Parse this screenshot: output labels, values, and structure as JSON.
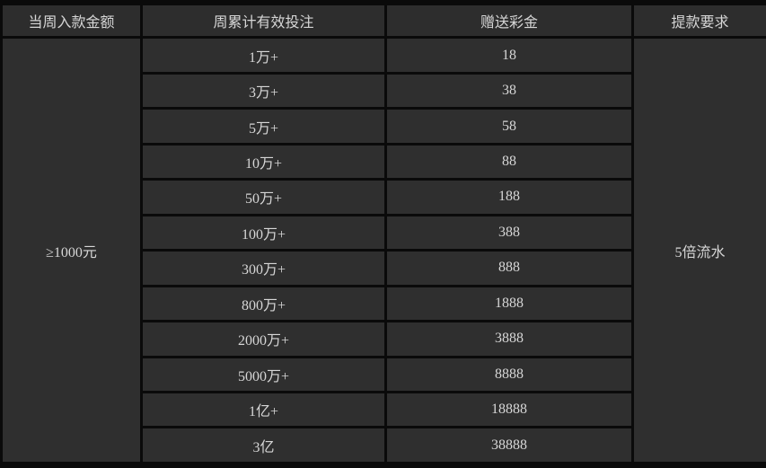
{
  "table": {
    "headers": {
      "deposit": "当周入款金额",
      "bet": "周累计有效投注",
      "bonus": "赠送彩金",
      "withdraw": "提款要求"
    },
    "deposit_requirement": "≥1000元",
    "withdrawal_requirement": "5倍流水",
    "rows": [
      {
        "bet": "1万+",
        "bonus": "18"
      },
      {
        "bet": "3万+",
        "bonus": "38"
      },
      {
        "bet": "5万+",
        "bonus": "58"
      },
      {
        "bet": "10万+",
        "bonus": "88"
      },
      {
        "bet": "50万+",
        "bonus": "188"
      },
      {
        "bet": "100万+",
        "bonus": "388"
      },
      {
        "bet": "300万+",
        "bonus": "888"
      },
      {
        "bet": "800万+",
        "bonus": "1888"
      },
      {
        "bet": "2000万+",
        "bonus": "3888"
      },
      {
        "bet": "5000万+",
        "bonus": "8888"
      },
      {
        "bet": "1亿+",
        "bonus": "18888"
      },
      {
        "bet": "3亿",
        "bonus": "38888"
      }
    ]
  },
  "colors": {
    "cell_background": "#2f2f2f",
    "border": "#0a0a0a",
    "text": "#d6d6d6"
  }
}
